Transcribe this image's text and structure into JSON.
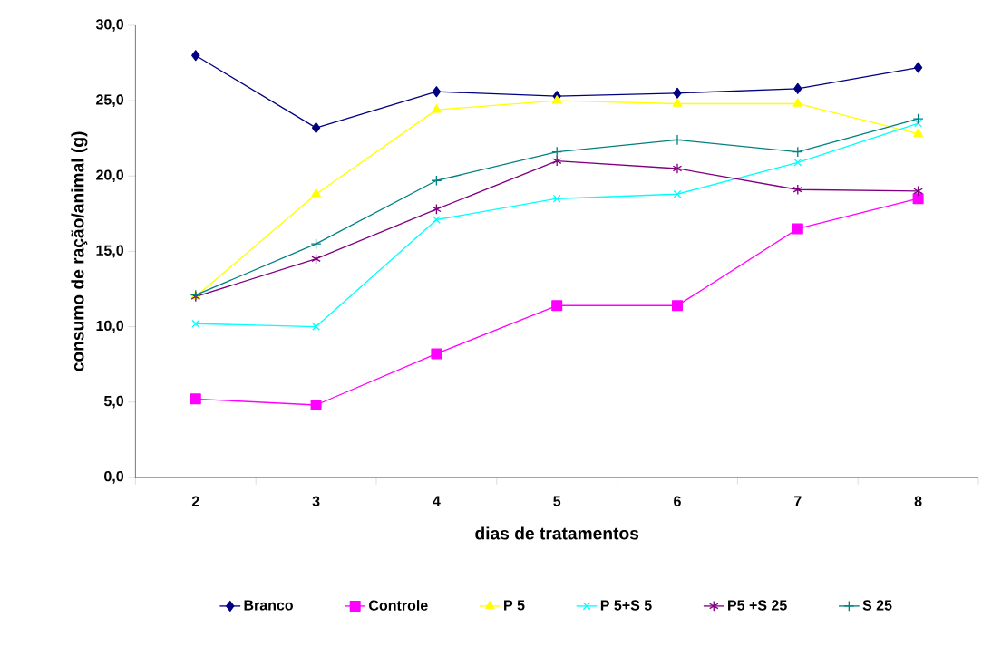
{
  "chart_data": {
    "type": "line",
    "xlabel": "dias de tratamentos",
    "ylabel": "consumo de ração/animal (g)",
    "categories": [
      "2",
      "3",
      "4",
      "5",
      "6",
      "7",
      "8"
    ],
    "series": [
      {
        "name": "Branco",
        "color": "#000080",
        "marker": "diamond",
        "values": [
          28.0,
          23.2,
          25.6,
          25.3,
          25.5,
          25.8,
          27.2
        ]
      },
      {
        "name": "Controle",
        "color": "#ff00ff",
        "marker": "square",
        "values": [
          5.2,
          4.8,
          8.2,
          11.4,
          11.4,
          16.5,
          18.5
        ]
      },
      {
        "name": "P 5",
        "color": "#ffff00",
        "marker": "triangle",
        "values": [
          12.0,
          18.8,
          24.4,
          25.0,
          24.8,
          24.8,
          22.8
        ]
      },
      {
        "name": "P 5+S 5",
        "color": "#00ffff",
        "marker": "cross",
        "values": [
          10.2,
          10.0,
          17.1,
          18.5,
          18.8,
          20.9,
          23.5
        ]
      },
      {
        "name": "P5 +S 25",
        "color": "#800080",
        "marker": "cross",
        "values": [
          12.0,
          14.5,
          17.8,
          21.0,
          20.5,
          19.1,
          19.0
        ]
      },
      {
        "name": "S 25",
        "color": "#008080",
        "marker": "plus",
        "values": [
          12.1,
          15.5,
          19.7,
          21.6,
          22.4,
          21.6,
          23.8
        ]
      }
    ],
    "ylim": [
      0,
      30
    ],
    "yticks": [
      {
        "value": 0,
        "label": "0,0"
      },
      {
        "value": 5,
        "label": "5,0"
      },
      {
        "value": 10,
        "label": "10,0"
      },
      {
        "value": 15,
        "label": "15,0"
      },
      {
        "value": 20,
        "label": "20,0"
      },
      {
        "value": 25,
        "label": "25,0"
      },
      {
        "value": 30,
        "label": "30,0"
      }
    ],
    "grid": false,
    "legend": "bottom",
    "line_style": "solid"
  }
}
